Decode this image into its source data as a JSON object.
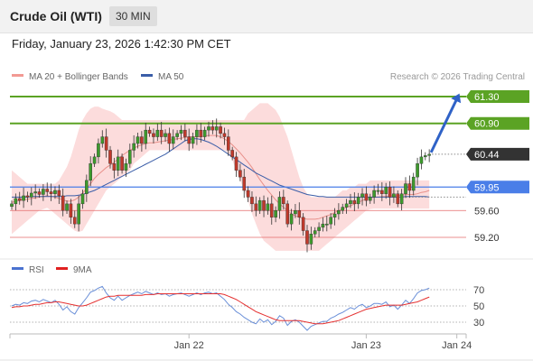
{
  "header": {
    "title": "Crude Oil (WTI)",
    "timeframe": "30 MIN"
  },
  "datetime": "Friday, January 23, 2026 1:42:30 PM CET",
  "legend": {
    "ma20_label": "MA 20 + Bollinger Bands",
    "ma50_label": "MA 50",
    "rsi_label": "RSI",
    "ma9_label": "9MA",
    "credit": "Research © 2026 Trading Central"
  },
  "colors": {
    "up": "#3d9a2c",
    "down": "#c0392b",
    "bands": "#fbd0d0",
    "ma20": "#e8908a",
    "ma50": "#3b5ea8",
    "resistance": "#5ba324",
    "pivot": "#4a7ee8",
    "support": "#e46a6a",
    "arrow": "#2f62c7",
    "rsi": "#6a8fd8",
    "rsi_ma": "#e53030",
    "current": "#333333"
  },
  "chart_data": [
    {
      "type": "candlestick",
      "title": "Crude Oil (WTI)",
      "timeframe": "30 MIN",
      "x_tick_labels": [
        "Jan 22",
        "Jan 23",
        "Jan 24"
      ],
      "x_tick_index": [
        45,
        90,
        113
      ],
      "ylim": [
        59.0,
        61.5
      ],
      "price_labels": [
        {
          "label": "61.30",
          "value": 61.3,
          "kind": "resistance"
        },
        {
          "label": "60.90",
          "value": 60.9,
          "kind": "resistance"
        },
        {
          "label": "60.44",
          "value": 60.44,
          "kind": "current"
        },
        {
          "label": "59.95",
          "value": 59.95,
          "kind": "pivot"
        },
        {
          "label": "59.60",
          "value": 59.6,
          "kind": "support"
        },
        {
          "label": "59.20",
          "value": 59.2,
          "kind": "support"
        }
      ],
      "forecast_arrow": {
        "from": 60.44,
        "to": 61.3
      },
      "close": [
        59.7,
        59.78,
        59.75,
        59.82,
        59.8,
        59.86,
        59.88,
        59.84,
        59.92,
        59.88,
        59.85,
        59.9,
        59.82,
        59.6,
        59.7,
        59.5,
        59.4,
        59.7,
        59.85,
        60.05,
        60.3,
        60.4,
        60.6,
        60.7,
        60.5,
        60.3,
        60.2,
        60.4,
        60.2,
        60.3,
        60.5,
        60.6,
        60.7,
        60.6,
        60.8,
        60.75,
        60.7,
        60.8,
        60.7,
        60.75,
        60.6,
        60.7,
        60.75,
        60.8,
        60.7,
        60.6,
        60.7,
        60.8,
        60.7,
        60.8,
        60.85,
        60.8,
        60.85,
        60.75,
        60.7,
        60.5,
        60.4,
        60.2,
        60.1,
        59.9,
        59.8,
        59.7,
        59.6,
        59.75,
        59.6,
        59.7,
        59.5,
        59.6,
        59.8,
        59.7,
        59.4,
        59.55,
        59.6,
        59.5,
        59.3,
        59.1,
        59.25,
        59.3,
        59.35,
        59.4,
        59.4,
        59.5,
        59.55,
        59.6,
        59.65,
        59.7,
        59.75,
        59.7,
        59.8,
        59.85,
        59.75,
        59.8,
        59.9,
        59.9,
        59.85,
        59.95,
        59.8,
        59.85,
        59.7,
        59.85,
        60.0,
        59.9,
        60.1,
        60.3,
        60.4,
        60.42,
        60.44
      ],
      "ma20": [
        59.72,
        59.74,
        59.75,
        59.76,
        59.77,
        59.78,
        59.79,
        59.8,
        59.81,
        59.82,
        59.81,
        59.8,
        59.78,
        59.76,
        59.74,
        59.74,
        59.76,
        59.8,
        59.86,
        59.93,
        60.0,
        60.08,
        60.14,
        60.19,
        60.24,
        60.28,
        60.32,
        60.37,
        60.42,
        60.46,
        60.5,
        60.53,
        60.56,
        60.58,
        60.6,
        60.61,
        60.61,
        60.62,
        60.63,
        60.64,
        60.65,
        60.66,
        60.67,
        60.68,
        60.69,
        60.7,
        60.7,
        60.7,
        60.7,
        60.71,
        60.72,
        60.72,
        60.72,
        60.7,
        60.67,
        60.63,
        60.58,
        60.52,
        60.46,
        60.39,
        60.32,
        60.24,
        60.15,
        60.06,
        59.98,
        59.9,
        59.83,
        59.76,
        59.7,
        59.65,
        59.6,
        59.55,
        59.52,
        59.5,
        59.48,
        59.47,
        59.47,
        59.47,
        59.48,
        59.5,
        59.52,
        59.54,
        59.57,
        59.6,
        59.62,
        59.65,
        59.67,
        59.7,
        59.72,
        59.75,
        59.77,
        59.79,
        59.8,
        59.8,
        59.81,
        59.81,
        59.82,
        59.82,
        59.82,
        59.83,
        59.84,
        59.84,
        59.84,
        59.85,
        59.87,
        59.88,
        59.9
      ],
      "ma50": [
        59.8,
        59.8,
        59.8,
        59.8,
        59.8,
        59.81,
        59.81,
        59.81,
        59.81,
        59.81,
        59.81,
        59.81,
        59.81,
        59.81,
        59.82,
        59.82,
        59.82,
        59.83,
        59.84,
        59.86,
        59.88,
        59.9,
        59.93,
        59.96,
        59.99,
        60.02,
        60.05,
        60.08,
        60.11,
        60.14,
        60.17,
        60.2,
        60.23,
        60.26,
        60.29,
        60.32,
        60.35,
        60.38,
        60.41,
        60.44,
        60.48,
        60.52,
        60.56,
        60.6,
        60.64,
        60.66,
        60.67,
        60.67,
        60.66,
        60.64,
        60.62,
        60.59,
        60.56,
        60.52,
        60.48,
        60.44,
        60.4,
        60.36,
        60.32,
        60.28,
        60.24,
        60.2,
        60.16,
        60.13,
        60.1,
        60.07,
        60.04,
        60.01,
        59.98,
        59.96,
        59.94,
        59.92,
        59.9,
        59.88,
        59.86,
        59.84,
        59.83,
        59.82,
        59.81,
        59.81,
        59.8,
        59.8,
        59.8,
        59.8,
        59.8,
        59.8,
        59.8,
        59.8,
        59.8,
        59.8,
        59.8,
        59.8,
        59.8,
        59.8,
        59.8,
        59.8,
        59.8,
        59.8,
        59.8,
        59.8,
        59.81,
        59.81,
        59.81,
        59.81,
        59.81,
        59.81,
        59.8
      ],
      "bb_upper": [
        60.2,
        60.15,
        60.1,
        60.05,
        60.0,
        60.0,
        60.0,
        60.0,
        60.0,
        60.0,
        60.0,
        60.0,
        60.05,
        60.15,
        60.25,
        60.4,
        60.6,
        60.8,
        60.95,
        61.05,
        61.12,
        61.15,
        61.15,
        61.12,
        61.1,
        61.08,
        61.05,
        61.0,
        60.95,
        60.95,
        60.95,
        60.95,
        60.95,
        60.95,
        60.95,
        60.95,
        60.95,
        60.95,
        60.95,
        60.95,
        60.95,
        60.95,
        60.95,
        60.95,
        60.95,
        60.95,
        60.95,
        60.95,
        60.95,
        60.95,
        60.95,
        60.95,
        60.95,
        60.95,
        60.95,
        60.95,
        60.95,
        60.95,
        60.95,
        60.95,
        61.05,
        61.1,
        61.15,
        61.2,
        61.2,
        61.2,
        61.15,
        61.1,
        61.0,
        60.85,
        60.7,
        60.5,
        60.3,
        60.1,
        59.95,
        59.85,
        59.8,
        59.8,
        59.8,
        59.8,
        59.8,
        59.8,
        59.8,
        59.85,
        59.9,
        59.9,
        59.95,
        59.95,
        60.0,
        60.0,
        60.0,
        60.05,
        60.05,
        60.05,
        60.05,
        60.05,
        60.05,
        60.05,
        60.05,
        60.05,
        60.05,
        60.05,
        60.05,
        60.05,
        60.05,
        60.05,
        60.05
      ],
      "bb_lower": [
        59.25,
        59.3,
        59.35,
        59.4,
        59.45,
        59.5,
        59.55,
        59.6,
        59.62,
        59.64,
        59.6,
        59.55,
        59.5,
        59.45,
        59.4,
        59.35,
        59.3,
        59.28,
        59.3,
        59.4,
        59.5,
        59.6,
        59.7,
        59.8,
        59.9,
        59.95,
        60.0,
        60.05,
        60.1,
        60.15,
        60.2,
        60.3,
        60.35,
        60.4,
        60.45,
        60.5,
        60.5,
        60.5,
        60.5,
        60.5,
        60.5,
        60.5,
        60.5,
        60.5,
        60.5,
        60.5,
        60.5,
        60.5,
        60.5,
        60.5,
        60.5,
        60.5,
        60.5,
        60.5,
        60.5,
        60.45,
        60.35,
        60.2,
        60.05,
        59.9,
        59.75,
        59.55,
        59.4,
        59.25,
        59.15,
        59.1,
        59.05,
        59.0,
        59.0,
        59.0,
        59.0,
        59.0,
        59.0,
        59.0,
        59.0,
        59.0,
        59.0,
        59.0,
        59.0,
        59.05,
        59.1,
        59.15,
        59.2,
        59.25,
        59.3,
        59.35,
        59.4,
        59.45,
        59.5,
        59.55,
        59.6,
        59.62,
        59.63,
        59.63,
        59.63,
        59.63,
        59.63,
        59.63,
        59.63,
        59.63,
        59.63,
        59.63,
        59.63,
        59.63,
        59.63,
        59.63,
        59.63
      ]
    },
    {
      "type": "line",
      "title": "RSI",
      "series": [
        {
          "name": "RSI"
        },
        {
          "name": "9MA"
        }
      ],
      "y_tick_labels": [
        "70",
        "50",
        "30"
      ],
      "y_tick_values": [
        70,
        50,
        30
      ],
      "ylim": [
        15,
        75
      ],
      "rsi": [
        50,
        52,
        51,
        54,
        53,
        56,
        57,
        55,
        58,
        56,
        54,
        57,
        52,
        45,
        49,
        43,
        40,
        48,
        54,
        60,
        67,
        69,
        72,
        74,
        66,
        60,
        57,
        62,
        57,
        60,
        63,
        65,
        67,
        65,
        68,
        66,
        64,
        66,
        64,
        65,
        62,
        64,
        65,
        66,
        64,
        62,
        64,
        66,
        64,
        66,
        67,
        65,
        66,
        62,
        58,
        52,
        48,
        43,
        40,
        36,
        33,
        30,
        28,
        34,
        30,
        33,
        27,
        31,
        38,
        35,
        26,
        31,
        33,
        30,
        25,
        20,
        25,
        27,
        29,
        31,
        31,
        35,
        37,
        40,
        42,
        45,
        48,
        46,
        50,
        52,
        48,
        50,
        53,
        53,
        52,
        55,
        49,
        51,
        46,
        51,
        57,
        53,
        59,
        66,
        69,
        70,
        72
      ],
      "rsi_ma": [
        48,
        49,
        49,
        50,
        50,
        51,
        52,
        52,
        53,
        54,
        54,
        55,
        55,
        54,
        53,
        52,
        51,
        50,
        50,
        51,
        53,
        55,
        57,
        59,
        61,
        62,
        62,
        63,
        63,
        63,
        63,
        63,
        63,
        63,
        64,
        64,
        64,
        65,
        65,
        65,
        65,
        65,
        65,
        65,
        65,
        65,
        65,
        65,
        65,
        65,
        65,
        65,
        65,
        65,
        64,
        62,
        60,
        58,
        55,
        52,
        49,
        46,
        43,
        41,
        39,
        37,
        35,
        33,
        32,
        32,
        32,
        32,
        32,
        32,
        31,
        30,
        29,
        28,
        28,
        28,
        29,
        30,
        31,
        32,
        34,
        36,
        38,
        40,
        42,
        44,
        46,
        47,
        48,
        49,
        50,
        51,
        51,
        51,
        51,
        51,
        52,
        53,
        54,
        55,
        57,
        59,
        61
      ]
    }
  ]
}
